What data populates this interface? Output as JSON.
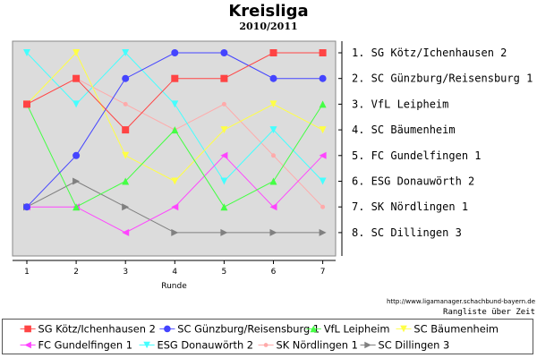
{
  "chart_data": {
    "type": "line",
    "title": "Kreisliga",
    "subtitle": "2010/2011",
    "xlabel": "Runde",
    "x": [
      1,
      2,
      3,
      4,
      5,
      6,
      7
    ],
    "ylim": [
      1,
      8
    ],
    "y_inverted": true,
    "grid": false,
    "background": "#dcdcdc",
    "rank_labels": [
      "1. SG Kötz/Ichenhausen 2",
      "2. SC Günzburg/Reisensburg 1",
      "3. VfL Leipheim",
      "4. SC Bäumenheim",
      "5. FC Gundelfingen 1",
      "6. ESG Donauwörth 2",
      "7. SK Nördlingen 1",
      "8. SC Dillingen 3"
    ],
    "series": [
      {
        "name": "SG Kötz/Ichenhausen 2",
        "color": "#ff4444",
        "marker": "square",
        "values": [
          3,
          2,
          4,
          2,
          2,
          1,
          1
        ]
      },
      {
        "name": "SC Günzburg/Reisensburg 1",
        "color": "#4444ff",
        "marker": "circle",
        "values": [
          7,
          5,
          2,
          1,
          1,
          2,
          2
        ]
      },
      {
        "name": "VfL Leipheim",
        "color": "#44ff44",
        "marker": "triangle-up",
        "values": [
          3,
          7,
          6,
          4,
          7,
          6,
          3
        ]
      },
      {
        "name": "SC Bäumenheim",
        "color": "#ffff44",
        "marker": "triangle-down",
        "values": [
          3,
          1,
          5,
          6,
          4,
          3,
          4
        ]
      },
      {
        "name": "FC Gundelfingen 1",
        "color": "#ff44ff",
        "marker": "triangle-left",
        "values": [
          7,
          7,
          8,
          7,
          5,
          7,
          5
        ]
      },
      {
        "name": "ESG Donauwörth 2",
        "color": "#44ffff",
        "marker": "triangle-down",
        "values": [
          1,
          3,
          1,
          3,
          6,
          4,
          6
        ]
      },
      {
        "name": "SK Nördlingen 1",
        "color": "#ffaaaa",
        "marker": "circle-small",
        "values": [
          3,
          2,
          3,
          4,
          3,
          5,
          7
        ]
      },
      {
        "name": "SC Dillingen 3",
        "color": "#808080",
        "marker": "triangle-right",
        "values": [
          7,
          6,
          7,
          8,
          8,
          8,
          8
        ]
      }
    ]
  },
  "footer": {
    "url": "http://www.ligamanager.schachbund-bayern.de",
    "note": "Rangliste über Zeit"
  }
}
